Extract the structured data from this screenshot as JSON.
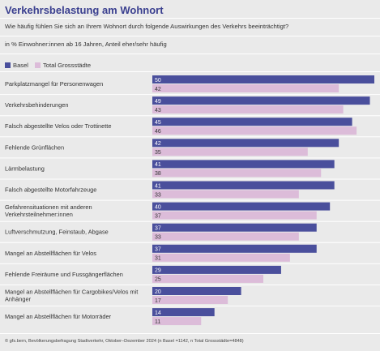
{
  "title": "Verkehrsbelastung am Wohnort",
  "subtitle": "Wie häufig fühlen Sie sich an Ihrem Wohnort durch folgende Auswirkungen des Verkehrs beeinträchtigt?",
  "subline": "in % Einwohner:innen ab 16 Jahren, Anteil eher/sehr häufig",
  "footnote": "© gfs.bern, Bevölkerungsbefragung Stadtverkehr, Oktober–Dezember 2024 (n Basel =1142, n Total Grossstädte=4848)",
  "colors": {
    "basel": "#4a4f9c",
    "total": "#dcbcd9",
    "title": "#3a3f8f"
  },
  "chart_data": {
    "type": "bar",
    "orientation": "horizontal",
    "categories": [
      "Parkplatzmangel für Personenwagen",
      "Verkehrsbehinderungen",
      "Falsch abgestellte Velos oder Trottinette",
      "Fehlende Grünflächen",
      "Lärmbelastung",
      "Falsch abgestellte Motorfahrzeuge",
      "Gefahrensituationen mit anderen Verkehrsteilnehmer:innen",
      "Luftverschmutzung, Feinstaub, Abgase",
      "Mangel an Abstellflächen für Velos",
      "Fehlende Freiräume und Fussgängerflächen",
      "Mangel an Abstellflächen für Cargobikes/Velos mit Anhänger",
      "Mangel an Abstellflächen für Motorräder"
    ],
    "category_lines": [
      [
        "Parkplatzmangel für Personenwagen"
      ],
      [
        "Verkehrsbehinderungen"
      ],
      [
        "Falsch abgestellte Velos oder Trottinette"
      ],
      [
        "Fehlende Grünflächen"
      ],
      [
        "Lärmbelastung"
      ],
      [
        "Falsch abgestellte Motorfahrzeuge"
      ],
      [
        "Gefahrensituationen mit anderen",
        "Verkehrsteilnehmer:innen"
      ],
      [
        "Luftverschmutzung, Feinstaub, Abgase"
      ],
      [
        "Mangel an Abstellflächen für Velos"
      ],
      [
        "Fehlende Freiräume und Fussgängerflächen"
      ],
      [
        "Mangel an Abstellflächen für Cargobikes/Velos mit",
        "Anhänger"
      ],
      [
        "Mangel an Abstellflächen für Motorräder"
      ]
    ],
    "series": [
      {
        "name": "Basel",
        "values": [
          50,
          49,
          45,
          42,
          41,
          41,
          40,
          37,
          37,
          29,
          20,
          14
        ]
      },
      {
        "name": "Total Grossstädte",
        "values": [
          42,
          43,
          46,
          35,
          38,
          33,
          37,
          33,
          31,
          25,
          17,
          11
        ]
      }
    ],
    "xlim": [
      0,
      50
    ],
    "legend": "top-left",
    "grid": false
  }
}
